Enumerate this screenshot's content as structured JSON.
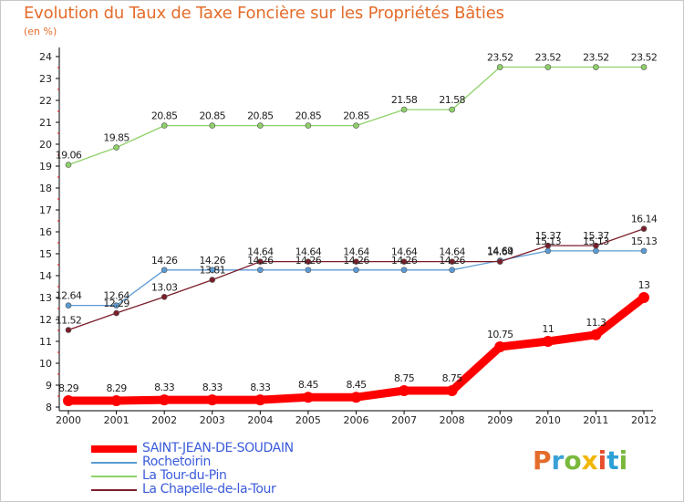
{
  "chart_data": {
    "type": "line",
    "title": "Evolution du Taux de Taxe Foncière sur les Propriétés Bâties",
    "ylabel": "(en %)",
    "xlabel": "",
    "x": [
      "2000",
      "2001",
      "2002",
      "2003",
      "2004",
      "2005",
      "2006",
      "2007",
      "2008",
      "2009",
      "2010",
      "2011",
      "2012"
    ],
    "ylim": [
      8,
      24
    ],
    "yticks": [
      "8",
      "9",
      "10",
      "11",
      "12",
      "13",
      "14",
      "15",
      "16",
      "17",
      "18",
      "19",
      "20",
      "21",
      "22",
      "23",
      "24"
    ],
    "series": [
      {
        "name": "SAINT-JEAN-DE-SOUDAIN",
        "color": "#ff0000",
        "values": [
          8.29,
          8.29,
          8.33,
          8.33,
          8.33,
          8.45,
          8.45,
          8.75,
          8.75,
          10.75,
          11,
          11.3,
          13
        ],
        "labels": [
          "8.29",
          "8.29",
          "8.33",
          "8.33",
          "8.33",
          "8.45",
          "8.45",
          "8.75",
          "8.75",
          "10.75",
          "11",
          "11.3",
          "13"
        ]
      },
      {
        "name": "Rochetoirin",
        "color": "#5b9bd5",
        "values": [
          12.64,
          12.64,
          14.26,
          14.26,
          14.26,
          14.26,
          14.26,
          14.26,
          14.26,
          14.69,
          15.13,
          15.13,
          15.13
        ],
        "labels": [
          "12.64",
          "12.64",
          "14.26",
          "14.26",
          "14.26",
          "14.26",
          "14.26",
          "14.26",
          "14.26",
          "14.69",
          "15.13",
          "15.13",
          "15.13"
        ]
      },
      {
        "name": "La Tour-du-Pin",
        "color": "#8fd16a",
        "values": [
          19.06,
          19.85,
          20.85,
          20.85,
          20.85,
          20.85,
          20.85,
          21.58,
          21.58,
          23.52,
          23.52,
          23.52,
          23.52
        ],
        "labels": [
          "19.06",
          "19.85",
          "20.85",
          "20.85",
          "20.85",
          "20.85",
          "20.85",
          "21.58",
          "21.58",
          "23.52",
          "23.52",
          "23.52",
          "23.52"
        ]
      },
      {
        "name": "La Chapelle-de-la-Tour",
        "color": "#7b1e2a",
        "values": [
          11.52,
          12.29,
          13.03,
          13.81,
          14.64,
          14.64,
          14.64,
          14.64,
          14.64,
          14.64,
          15.37,
          15.37,
          16.14
        ],
        "labels": [
          "11.52",
          "12.29",
          "13.03",
          "13.81",
          "14.64",
          "14.64",
          "14.64",
          "14.64",
          "14.64",
          "14.64",
          "15.37",
          "15.37",
          "16.14"
        ]
      }
    ],
    "grid": false,
    "legend_position": "bottom-left"
  },
  "brand": {
    "text": "Proxiti",
    "colors": [
      "#e46c2a",
      "#3aa0d8",
      "#7ab83c",
      "#f2b705",
      "#e84d2e",
      "#2c9fd6",
      "#7ab83c"
    ]
  }
}
